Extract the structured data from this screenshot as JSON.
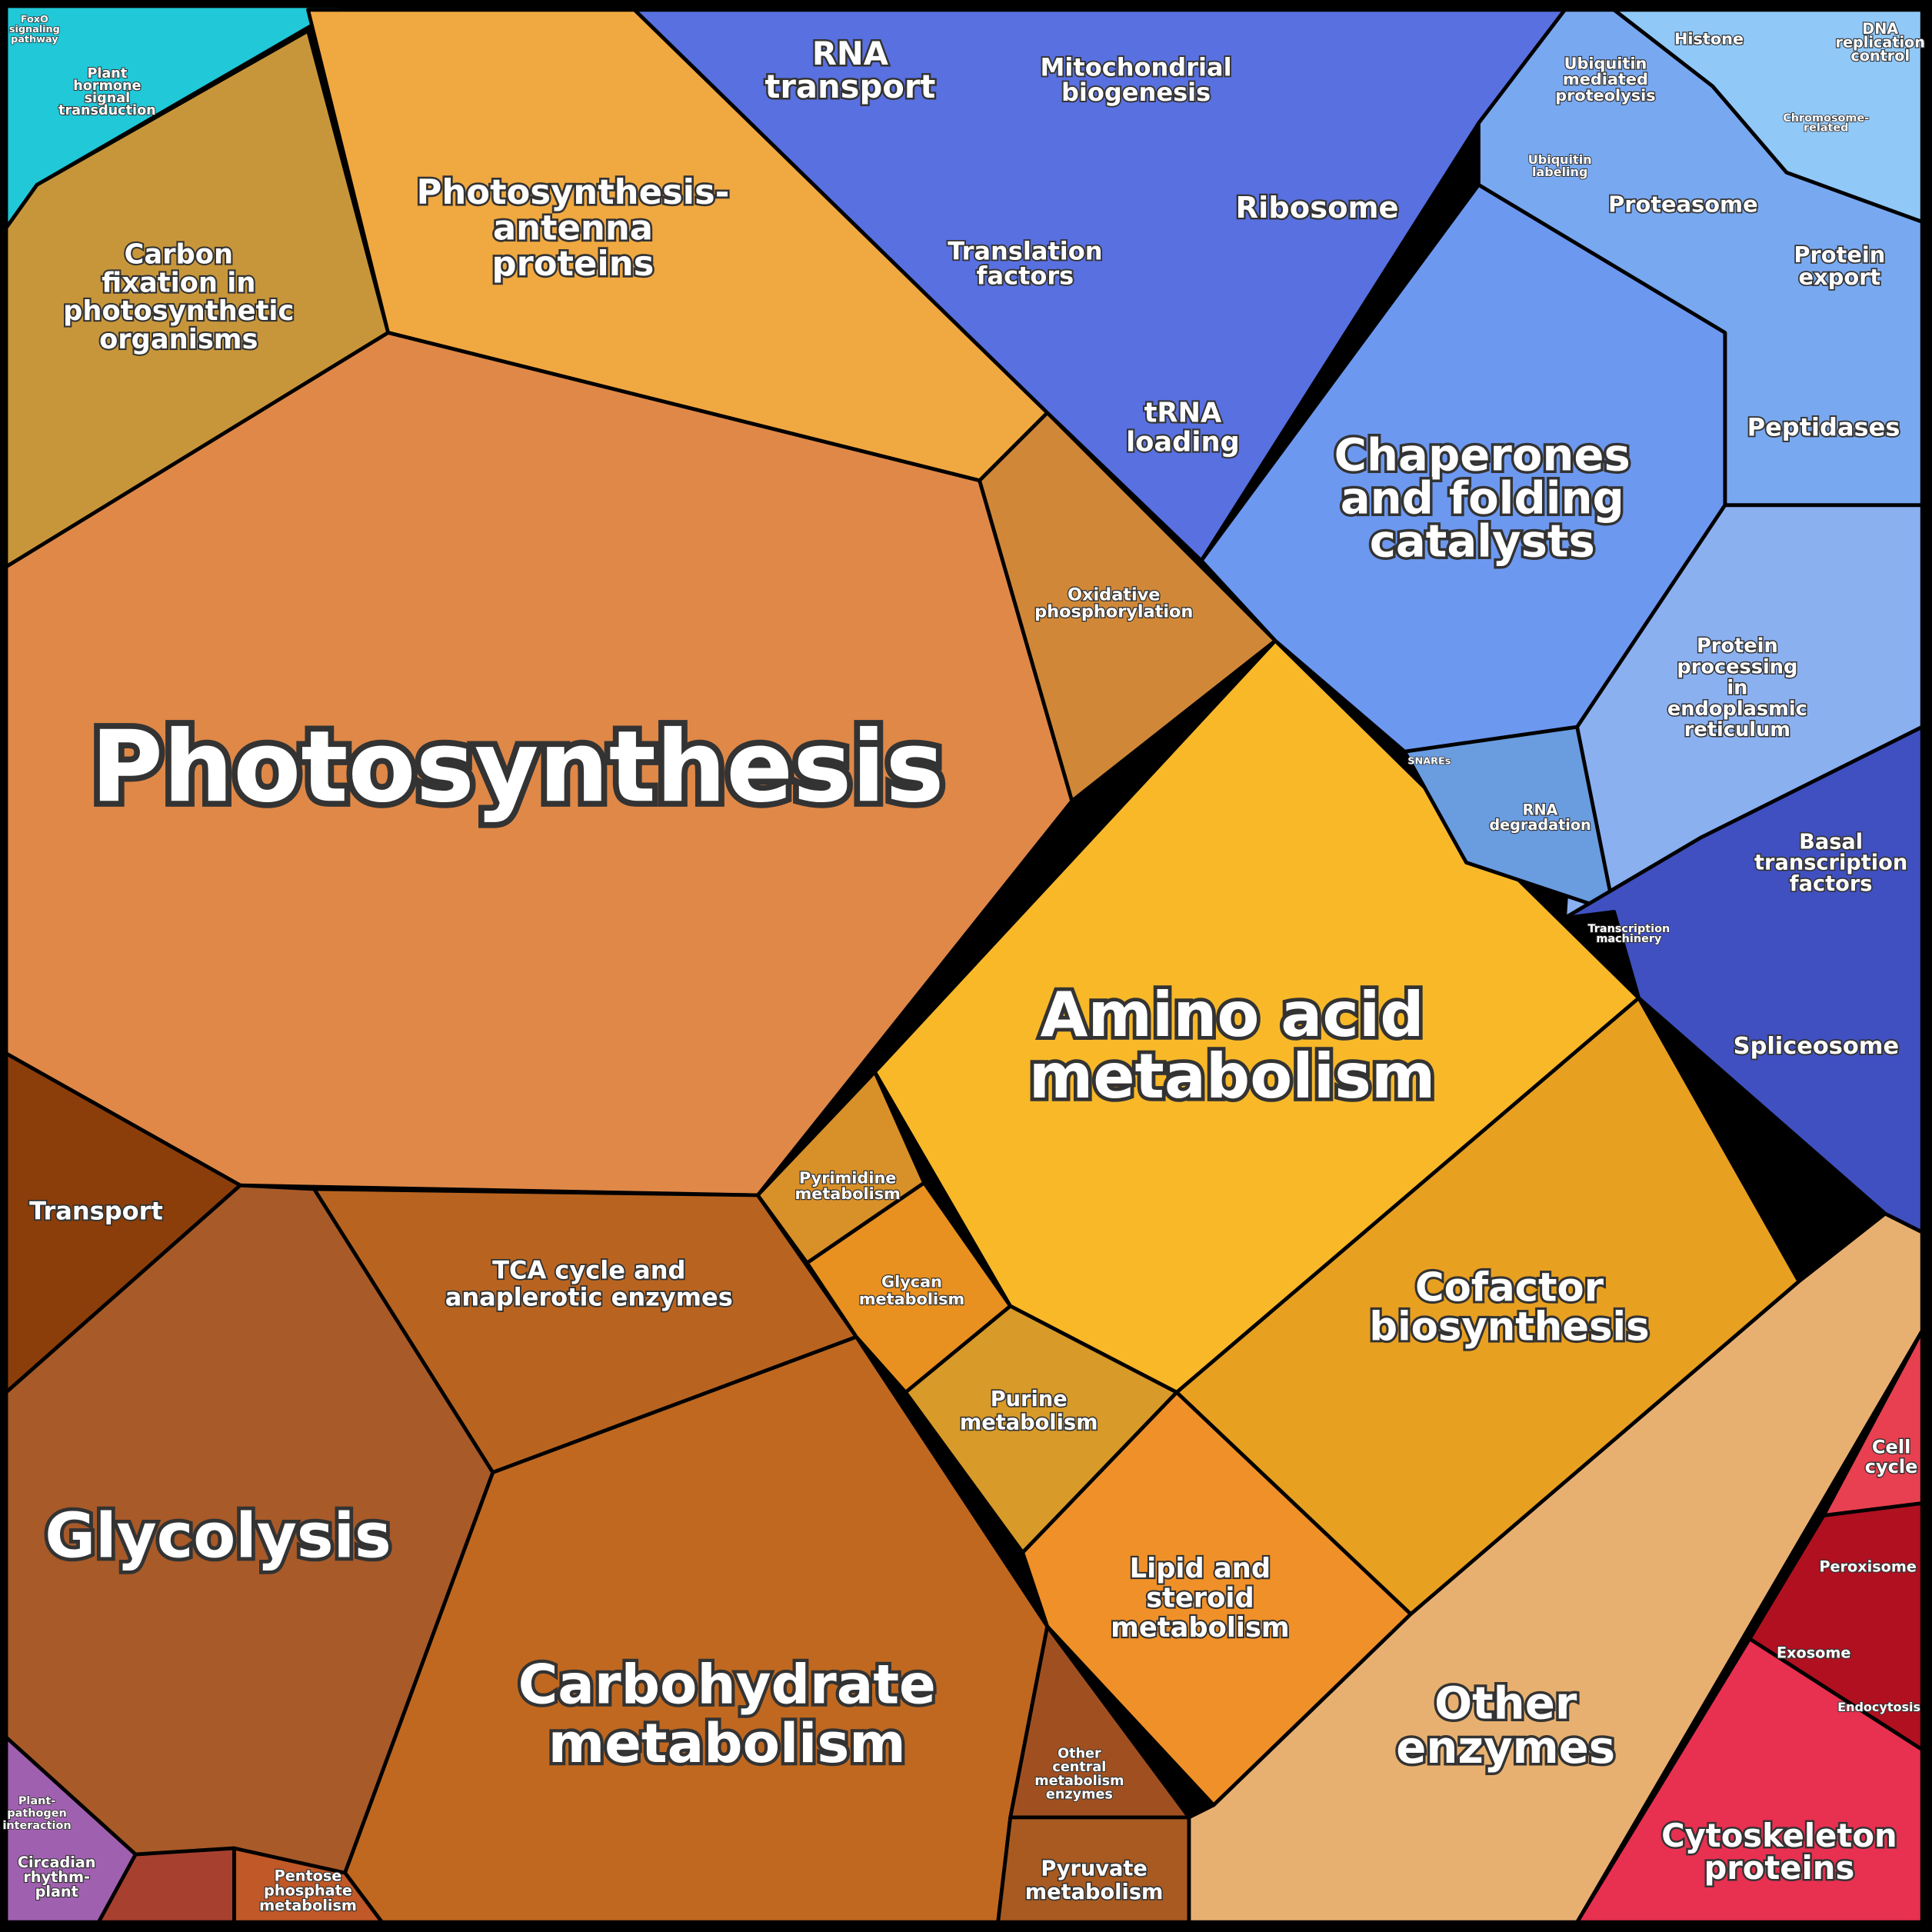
{
  "regions": [
    {
      "lines": [
        "Photosynthesis"
      ]
    },
    {
      "lines": [
        "Glycolysis"
      ]
    },
    {
      "lines": [
        "Carbohydrate",
        "metabolism"
      ]
    },
    {
      "lines": [
        "Amino acid",
        "metabolism"
      ]
    },
    {
      "lines": [
        "Chaperones",
        "and folding",
        "catalysts"
      ]
    },
    {
      "lines": [
        "Cofactor",
        "biosynthesis"
      ]
    },
    {
      "lines": [
        "Other",
        "enzymes"
      ]
    },
    {
      "lines": [
        "Cytoskeleton",
        "proteins"
      ]
    },
    {
      "lines": [
        "Photosynthesis-",
        "antenna",
        "proteins"
      ]
    },
    {
      "lines": [
        "Carbon",
        "fixation in",
        "photosynthetic",
        "organisms"
      ]
    },
    {
      "lines": [
        "RNA",
        "transport"
      ]
    },
    {
      "lines": [
        "Mitochondrial",
        "biogenesis"
      ]
    },
    {
      "lines": [
        "Ribosome"
      ]
    },
    {
      "lines": [
        "Translation",
        "factors"
      ]
    },
    {
      "lines": [
        "tRNA",
        "loading"
      ]
    },
    {
      "lines": [
        "Proteasome"
      ]
    },
    {
      "lines": [
        "Protein",
        "export"
      ]
    },
    {
      "lines": [
        "Peptidases"
      ]
    },
    {
      "lines": [
        "Ubiquitin",
        "mediated",
        "proteolysis"
      ]
    },
    {
      "lines": [
        "Histone"
      ]
    },
    {
      "lines": [
        "DNA",
        "replication",
        "control"
      ]
    },
    {
      "lines": [
        "Protein",
        "processing",
        "in",
        "endoplasmic",
        "reticulum"
      ]
    },
    {
      "lines": [
        "Basal",
        "transcription",
        "factors"
      ]
    },
    {
      "lines": [
        "Spliceosome"
      ]
    },
    {
      "lines": [
        "Transport"
      ]
    },
    {
      "lines": [
        "TCA cycle and",
        "anaplerotic enzymes"
      ]
    },
    {
      "lines": [
        "Oxidative",
        "phosphorylation"
      ]
    },
    {
      "lines": [
        "Pyrimidine",
        "metabolism"
      ]
    },
    {
      "lines": [
        "Glycan",
        "metabolism"
      ]
    },
    {
      "lines": [
        "Purine",
        "metabolism"
      ]
    },
    {
      "lines": [
        "Lipid and",
        "steroid",
        "metabolism"
      ]
    },
    {
      "lines": [
        "Other",
        "central",
        "metabolism",
        "enzymes"
      ]
    },
    {
      "lines": [
        "Pyruvate",
        "metabolism"
      ]
    },
    {
      "lines": [
        "Pentose",
        "phosphate",
        "metabolism"
      ]
    },
    {
      "lines": [
        "RNA",
        "degradation"
      ]
    },
    {
      "lines": [
        "Cell",
        "cycle"
      ]
    },
    {
      "lines": [
        "Peroxisome"
      ]
    },
    {
      "lines": [
        "Exosome"
      ]
    },
    {
      "lines": [
        "Endocytosis"
      ]
    },
    {
      "lines": [
        "Circadian",
        "rhythm-",
        "plant"
      ]
    },
    {
      "lines": [
        "Plant-",
        "pathogen",
        "interaction"
      ]
    },
    {
      "lines": [
        "Plant",
        "hormone",
        "signal",
        "transduction"
      ]
    },
    {
      "lines": [
        "FoxO",
        "signaling",
        "pathway"
      ]
    },
    {
      "lines": [
        "Ubiquitin",
        "labeling"
      ]
    },
    {
      "lines": [
        "Chromosome-",
        "related"
      ]
    },
    {
      "lines": [
        "SNAREs"
      ]
    },
    {
      "lines": [
        "Transcription",
        "machinery"
      ]
    }
  ]
}
